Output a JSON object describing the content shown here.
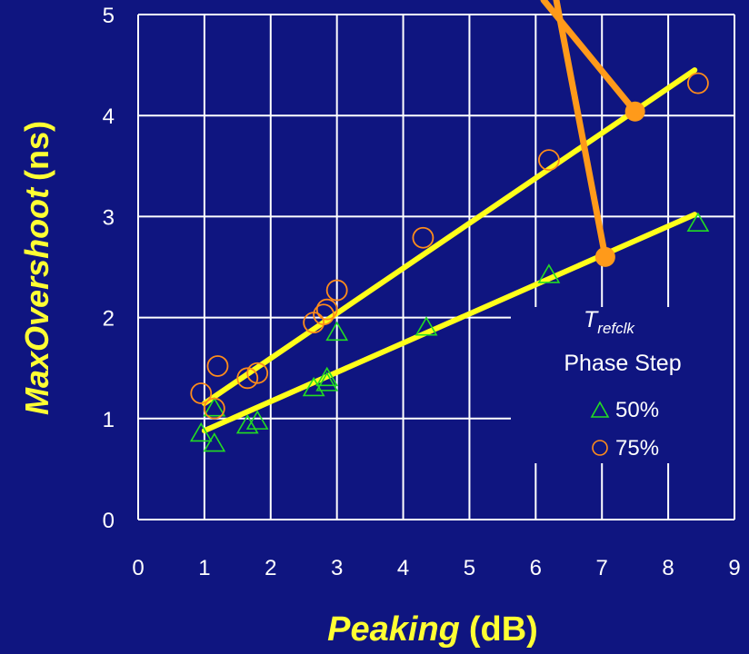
{
  "chart_data": {
    "type": "scatter",
    "title": "",
    "xlabel": {
      "italic": "Peaking",
      "unit": "(dB)"
    },
    "ylabel": {
      "italic": "MaxOvershoot",
      "unit": "(ns)"
    },
    "xlim": [
      0,
      9
    ],
    "ylim": [
      0,
      5
    ],
    "x_ticks": [
      "0",
      "1",
      "2",
      "3",
      "4",
      "5",
      "6",
      "7",
      "8",
      "9"
    ],
    "y_ticks": [
      "0",
      "1",
      "2",
      "3",
      "4",
      "5"
    ],
    "grid": true,
    "legend": {
      "title_main": "T",
      "title_sub": "refclk",
      "title_line2": "Phase Step",
      "placement": "right"
    },
    "series": [
      {
        "name": "50%",
        "marker": "triangle",
        "color": "#22dd22",
        "points": [
          [
            0.95,
            0.85
          ],
          [
            1.15,
            1.1
          ],
          [
            1.15,
            0.75
          ],
          [
            1.65,
            0.93
          ],
          [
            1.8,
            0.97
          ],
          [
            2.65,
            1.3
          ],
          [
            2.85,
            1.4
          ],
          [
            2.85,
            1.35
          ],
          [
            3.0,
            1.85
          ],
          [
            4.35,
            1.9
          ],
          [
            6.2,
            2.42
          ],
          [
            8.45,
            2.93
          ]
        ],
        "fit": [
          [
            1.0,
            0.88
          ],
          [
            8.4,
            3.02
          ]
        ]
      },
      {
        "name": "75%",
        "marker": "circle",
        "color": "#ff8c1a",
        "points": [
          [
            0.95,
            1.25
          ],
          [
            1.15,
            1.1
          ],
          [
            1.2,
            1.52
          ],
          [
            1.65,
            1.4
          ],
          [
            1.8,
            1.45
          ],
          [
            2.65,
            1.95
          ],
          [
            2.8,
            2.03
          ],
          [
            2.85,
            2.08
          ],
          [
            3.0,
            2.27
          ],
          [
            4.3,
            2.79
          ],
          [
            6.2,
            3.56
          ],
          [
            8.45,
            4.32
          ]
        ],
        "fit": [
          [
            1.0,
            1.15
          ],
          [
            8.4,
            4.45
          ]
        ]
      }
    ],
    "annotation": {
      "color": "#ff9a1a",
      "points": [
        [
          7.5,
          4.04
        ],
        [
          7.05,
          2.6
        ]
      ]
    },
    "colors": {
      "background": "#0f1580",
      "grid": "#ffffff",
      "fit_line": "#ffff1a",
      "axis_label": "#ffff33",
      "tick_text": "#ffffff"
    }
  }
}
